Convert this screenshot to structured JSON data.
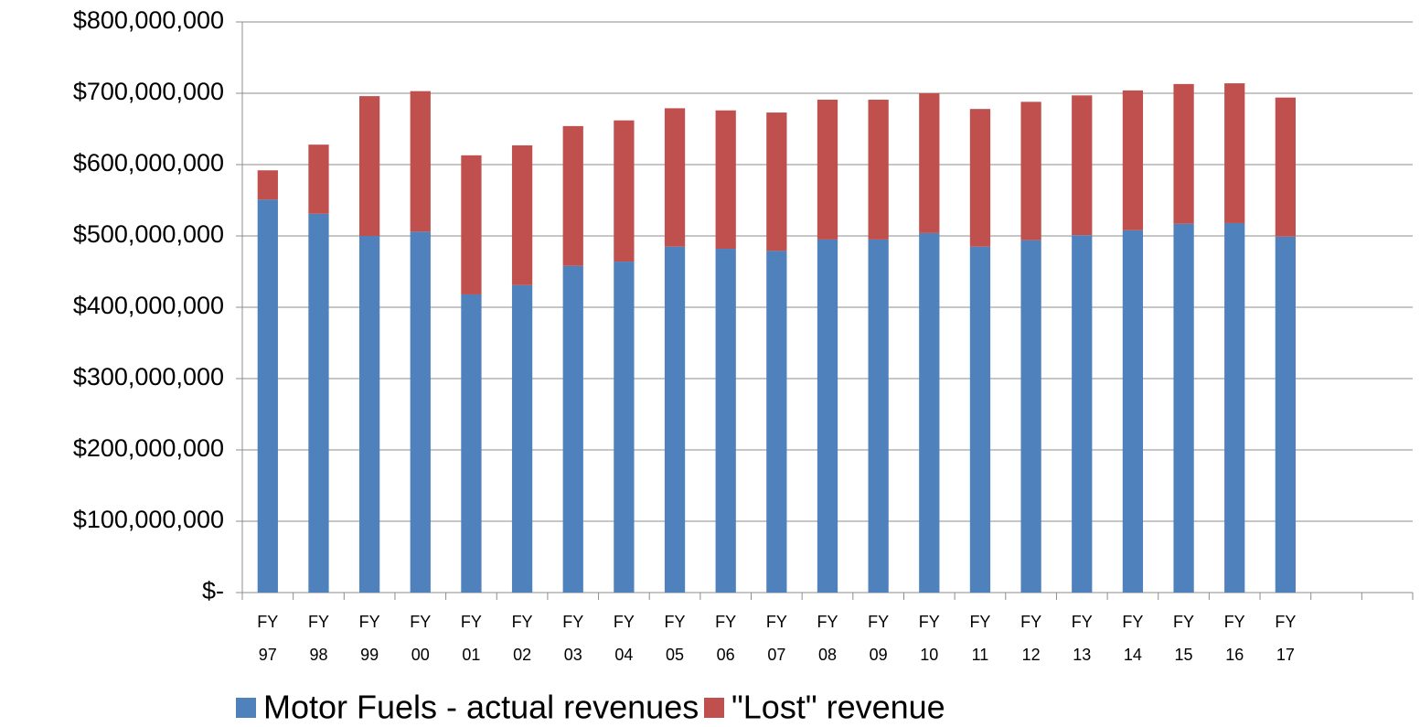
{
  "chart_data": {
    "type": "stacked_bar",
    "categories": [
      "FY 97",
      "FY 98",
      "FY 99",
      "FY 00",
      "FY 01",
      "FY 02",
      "FY 03",
      "FY 04",
      "FY 05",
      "FY 06",
      "FY 07",
      "FY 08",
      "FY 09",
      "FY 10",
      "FY 11",
      "FY 12",
      "FY 13",
      "FY 14",
      "FY 15",
      "FY 16",
      "FY 17",
      null,
      null
    ],
    "series": [
      {
        "name": "Motor Fuels - actual revenues",
        "color": "#4f81bd",
        "values": [
          551000000,
          531000000,
          500000000,
          506000000,
          418000000,
          431000000,
          458000000,
          464000000,
          485000000,
          482000000,
          479000000,
          495000000,
          495000000,
          504000000,
          485000000,
          494000000,
          501000000,
          508000000,
          517000000,
          518000000,
          499000000,
          null,
          null
        ]
      },
      {
        "name": "\"Lost\" revenue",
        "color": "#c0504d",
        "values": [
          41000000,
          97000000,
          196000000,
          197000000,
          195000000,
          196000000,
          196000000,
          198000000,
          194000000,
          194000000,
          194000000,
          196000000,
          196000000,
          196000000,
          193000000,
          194000000,
          196000000,
          196000000,
          196000000,
          196000000,
          195000000,
          null,
          null
        ]
      }
    ],
    "ylim": [
      0,
      800000000
    ],
    "yticks": [
      {
        "value": 0,
        "label": "$-"
      },
      {
        "value": 100000000,
        "label": "$100,000,000"
      },
      {
        "value": 200000000,
        "label": "$200,000,000"
      },
      {
        "value": 300000000,
        "label": "$300,000,000"
      },
      {
        "value": 400000000,
        "label": "$400,000,000"
      },
      {
        "value": 500000000,
        "label": "$500,000,000"
      },
      {
        "value": 600000000,
        "label": "$600,000,000"
      },
      {
        "value": 700000000,
        "label": "$700,000,000"
      },
      {
        "value": 800000000,
        "label": "$800,000,000"
      }
    ],
    "grid": true,
    "legend": "bottom"
  }
}
